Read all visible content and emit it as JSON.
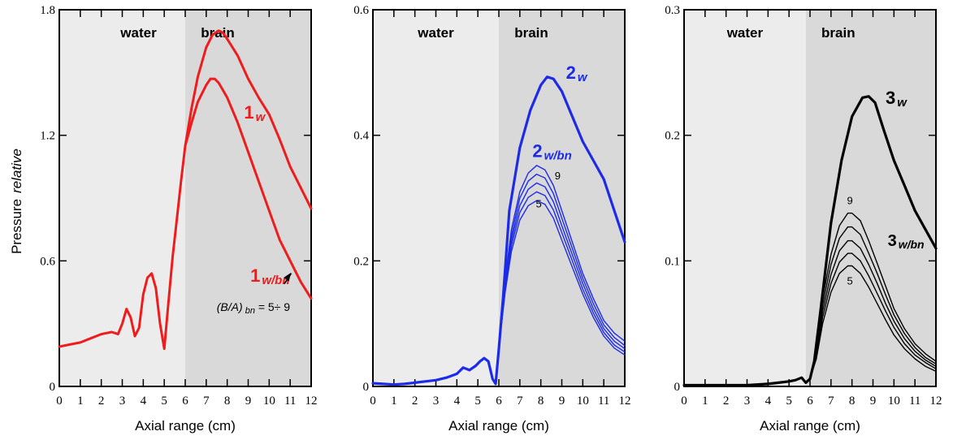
{
  "ylabel_main": "Pressure",
  "ylabel_italic": "relative",
  "chart_data": [
    {
      "type": "line",
      "color": "#ee1c1c",
      "xlabel": "Axial range  (cm)",
      "xlim": [
        0,
        12
      ],
      "ylim": [
        0,
        1.8
      ],
      "xticks": [
        "0",
        "1",
        "2",
        "3",
        "4",
        "5",
        "6",
        "7",
        "8",
        "9",
        "10",
        "11",
        "12"
      ],
      "yticks": [
        {
          "v": 0,
          "label": "0"
        },
        {
          "v": 0.6,
          "label": "0.6"
        },
        {
          "v": 1.2,
          "label": "1.2"
        },
        {
          "v": 1.8,
          "label": "1.8"
        }
      ],
      "regions": [
        {
          "label": "water",
          "from": 0,
          "to": 6
        },
        {
          "label": "brain",
          "from": 6,
          "to": 12
        }
      ],
      "series": [
        {
          "name_main": "1",
          "name_sub": "w",
          "x": [
            0,
            0.5,
            1,
            1.5,
            2,
            2.5,
            2.8,
            3.0,
            3.2,
            3.4,
            3.6,
            3.8,
            4.0,
            4.2,
            4.4,
            4.6,
            4.8,
            5.0,
            5.2,
            5.4,
            5.6,
            5.8,
            6.0,
            6.3,
            6.6,
            7.0,
            7.3,
            7.6,
            7.8,
            8.0,
            8.5,
            9.0,
            9.5,
            10.0,
            10.5,
            11.0,
            11.5,
            12.0
          ],
          "y": [
            0.19,
            0.2,
            0.21,
            0.23,
            0.25,
            0.26,
            0.25,
            0.3,
            0.37,
            0.33,
            0.24,
            0.28,
            0.44,
            0.52,
            0.54,
            0.47,
            0.3,
            0.18,
            0.4,
            0.62,
            0.8,
            0.98,
            1.15,
            1.33,
            1.48,
            1.62,
            1.68,
            1.7,
            1.69,
            1.66,
            1.58,
            1.47,
            1.38,
            1.3,
            1.18,
            1.05,
            0.95,
            0.85
          ]
        },
        {
          "name_main": "1",
          "name_sub": "w/bn",
          "x": [
            6.0,
            6.3,
            6.6,
            7.0,
            7.2,
            7.4,
            7.6,
            8.0,
            8.5,
            9.0,
            9.5,
            10.0,
            10.5,
            11.0,
            11.5,
            12.0
          ],
          "y": [
            1.15,
            1.26,
            1.36,
            1.44,
            1.47,
            1.47,
            1.45,
            1.38,
            1.26,
            1.12,
            0.98,
            0.84,
            0.7,
            0.6,
            0.5,
            0.42
          ]
        }
      ],
      "annotation_prefix": "(B/A)",
      "annotation_sub": "bn",
      "annotation_suffix": " = 5÷ 9"
    },
    {
      "type": "line",
      "color": "#1d2be8",
      "xlabel": "Axial range  (cm)",
      "xlim": [
        0,
        12
      ],
      "ylim": [
        0,
        0.6
      ],
      "xticks": [
        "0",
        "1",
        "2",
        "3",
        "4",
        "5",
        "6",
        "7",
        "8",
        "9",
        "10",
        "11",
        "12"
      ],
      "yticks": [
        {
          "v": 0,
          "label": "0"
        },
        {
          "v": 0.2,
          "label": "0.2"
        },
        {
          "v": 0.4,
          "label": "0.4"
        },
        {
          "v": 0.6,
          "label": "0.6"
        }
      ],
      "regions": [
        {
          "label": "water",
          "from": 0,
          "to": 6
        },
        {
          "label": "brain",
          "from": 6,
          "to": 12
        }
      ],
      "series": [
        {
          "name_main": "2",
          "name_sub": "w",
          "x": [
            0,
            0.5,
            1,
            1.5,
            2,
            2.5,
            3,
            3.5,
            4.0,
            4.3,
            4.6,
            4.9,
            5.1,
            5.3,
            5.5,
            5.7,
            5.85,
            6.0,
            6.2,
            6.5,
            7.0,
            7.5,
            8.0,
            8.3,
            8.6,
            9.0,
            9.5,
            10.0,
            10.5,
            11.0,
            11.5,
            12.0
          ],
          "y": [
            0.005,
            0.004,
            0.003,
            0.004,
            0.006,
            0.008,
            0.01,
            0.014,
            0.02,
            0.03,
            0.026,
            0.033,
            0.04,
            0.045,
            0.04,
            0.012,
            0.004,
            0.06,
            0.14,
            0.28,
            0.38,
            0.44,
            0.48,
            0.493,
            0.49,
            0.47,
            0.43,
            0.39,
            0.36,
            0.33,
            0.28,
            0.23
          ]
        },
        {
          "name_main": "2",
          "name_sub": "w/bn",
          "x": [
            6.0,
            6.3,
            6.6,
            7.0,
            7.4,
            7.8,
            8.2,
            8.6,
            9.0,
            9.5,
            10.0,
            10.5,
            11.0,
            11.5,
            12.0
          ],
          "y": [
            0.06,
            0.17,
            0.25,
            0.31,
            0.34,
            0.352,
            0.345,
            0.32,
            0.28,
            0.23,
            0.18,
            0.14,
            0.105,
            0.085,
            0.072
          ]
        },
        {
          "name_main": "",
          "name_sub": "",
          "x": [
            6.0,
            6.3,
            6.6,
            7.0,
            7.4,
            7.8,
            8.2,
            8.6,
            9.0,
            9.5,
            10.0,
            10.5,
            11.0,
            11.5,
            12.0
          ],
          "y": [
            0.06,
            0.165,
            0.24,
            0.3,
            0.327,
            0.338,
            0.332,
            0.307,
            0.268,
            0.22,
            0.172,
            0.132,
            0.098,
            0.078,
            0.065
          ]
        },
        {
          "name_main": "",
          "name_sub": "",
          "x": [
            6.0,
            6.3,
            6.6,
            7.0,
            7.4,
            7.8,
            8.2,
            8.6,
            9.0,
            9.5,
            10.0,
            10.5,
            11.0,
            11.5,
            12.0
          ],
          "y": [
            0.06,
            0.16,
            0.232,
            0.288,
            0.314,
            0.324,
            0.318,
            0.294,
            0.256,
            0.21,
            0.164,
            0.124,
            0.092,
            0.072,
            0.06
          ]
        },
        {
          "name_main": "",
          "name_sub": "",
          "x": [
            6.0,
            6.3,
            6.6,
            7.0,
            7.4,
            7.8,
            8.2,
            8.6,
            9.0,
            9.5,
            10.0,
            10.5,
            11.0,
            11.5,
            12.0
          ],
          "y": [
            0.06,
            0.155,
            0.224,
            0.277,
            0.301,
            0.31,
            0.304,
            0.281,
            0.245,
            0.2,
            0.155,
            0.117,
            0.086,
            0.066,
            0.055
          ]
        },
        {
          "name_main": "",
          "name_sub": "",
          "x": [
            6.0,
            6.3,
            6.6,
            7.0,
            7.4,
            7.8,
            8.2,
            8.6,
            9.0,
            9.5,
            10.0,
            10.5,
            11.0,
            11.5,
            12.0
          ],
          "y": [
            0.06,
            0.15,
            0.215,
            0.265,
            0.288,
            0.296,
            0.29,
            0.268,
            0.233,
            0.19,
            0.147,
            0.11,
            0.08,
            0.061,
            0.05
          ]
        }
      ],
      "line_labels": [
        {
          "text": "9",
          "x": 8.8,
          "y": 0.33
        },
        {
          "text": "5",
          "x": 7.9,
          "y": 0.285
        }
      ]
    },
    {
      "type": "line",
      "color": "#000000",
      "xlabel": "Axial range  (cm)",
      "xlim": [
        0,
        12
      ],
      "ylim": [
        0,
        0.3
      ],
      "xticks": [
        "0",
        "1",
        "2",
        "3",
        "4",
        "5",
        "6",
        "7",
        "8",
        "9",
        "10",
        "11",
        "12"
      ],
      "yticks": [
        {
          "v": 0,
          "label": "0"
        },
        {
          "v": 0.1,
          "label": "0.1"
        },
        {
          "v": 0.2,
          "label": "0.2"
        },
        {
          "v": 0.3,
          "label": "0.3"
        }
      ],
      "regions": [
        {
          "label": "water",
          "from": 0,
          "to": 5.8
        },
        {
          "label": "brain",
          "from": 5.8,
          "to": 12
        }
      ],
      "series": [
        {
          "name_main": "3",
          "name_sub": "w",
          "x": [
            0,
            1,
            2,
            3,
            4.0,
            4.5,
            5.0,
            5.3,
            5.6,
            5.8,
            6.0,
            6.2,
            6.5,
            7.0,
            7.5,
            8.0,
            8.5,
            8.8,
            9.1,
            9.5,
            10.0,
            10.5,
            11.0,
            11.5,
            12.0
          ],
          "y": [
            0.001,
            0.001,
            0.001,
            0.001,
            0.002,
            0.003,
            0.004,
            0.005,
            0.007,
            0.003,
            0.006,
            0.02,
            0.06,
            0.13,
            0.18,
            0.215,
            0.23,
            0.231,
            0.226,
            0.205,
            0.18,
            0.16,
            0.14,
            0.125,
            0.11
          ]
        },
        {
          "name_main": "3",
          "name_sub": "w/bn",
          "x": [
            6.0,
            6.3,
            6.6,
            7.0,
            7.4,
            7.8,
            8.0,
            8.4,
            8.8,
            9.2,
            9.6,
            10.0,
            10.5,
            11.0,
            11.5,
            12.0
          ],
          "y": [
            0.006,
            0.03,
            0.07,
            0.105,
            0.128,
            0.138,
            0.138,
            0.132,
            0.116,
            0.098,
            0.08,
            0.062,
            0.046,
            0.034,
            0.026,
            0.02
          ]
        },
        {
          "name_main": "",
          "name_sub": "",
          "x": [
            6.0,
            6.3,
            6.6,
            7.0,
            7.4,
            7.8,
            8.0,
            8.4,
            8.8,
            9.2,
            9.6,
            10.0,
            10.5,
            11.0,
            11.5,
            12.0
          ],
          "y": [
            0.006,
            0.028,
            0.065,
            0.097,
            0.118,
            0.127,
            0.127,
            0.121,
            0.106,
            0.09,
            0.073,
            0.057,
            0.042,
            0.031,
            0.023,
            0.018
          ]
        },
        {
          "name_main": "",
          "name_sub": "",
          "x": [
            6.0,
            6.3,
            6.6,
            7.0,
            7.4,
            7.8,
            8.0,
            8.4,
            8.8,
            9.2,
            9.6,
            10.0,
            10.5,
            11.0,
            11.5,
            12.0
          ],
          "y": [
            0.006,
            0.026,
            0.06,
            0.089,
            0.108,
            0.116,
            0.116,
            0.11,
            0.097,
            0.082,
            0.066,
            0.052,
            0.038,
            0.028,
            0.021,
            0.016
          ]
        },
        {
          "name_main": "",
          "name_sub": "",
          "x": [
            6.0,
            6.3,
            6.6,
            7.0,
            7.4,
            7.8,
            8.0,
            8.4,
            8.8,
            9.2,
            9.6,
            10.0,
            10.5,
            11.0,
            11.5,
            12.0
          ],
          "y": [
            0.006,
            0.024,
            0.055,
            0.082,
            0.099,
            0.106,
            0.106,
            0.1,
            0.088,
            0.074,
            0.06,
            0.047,
            0.034,
            0.025,
            0.019,
            0.014
          ]
        },
        {
          "name_main": "",
          "name_sub": "",
          "x": [
            6.0,
            6.3,
            6.6,
            7.0,
            7.4,
            7.8,
            8.0,
            8.4,
            8.8,
            9.2,
            9.6,
            10.0,
            10.5,
            11.0,
            11.5,
            12.0
          ],
          "y": [
            0.006,
            0.022,
            0.05,
            0.075,
            0.09,
            0.096,
            0.096,
            0.09,
            0.079,
            0.066,
            0.053,
            0.041,
            0.03,
            0.022,
            0.016,
            0.012
          ]
        }
      ],
      "line_labels": [
        {
          "text": "9",
          "x": 7.9,
          "y": 0.145
        },
        {
          "text": "5",
          "x": 7.9,
          "y": 0.081
        }
      ]
    }
  ]
}
